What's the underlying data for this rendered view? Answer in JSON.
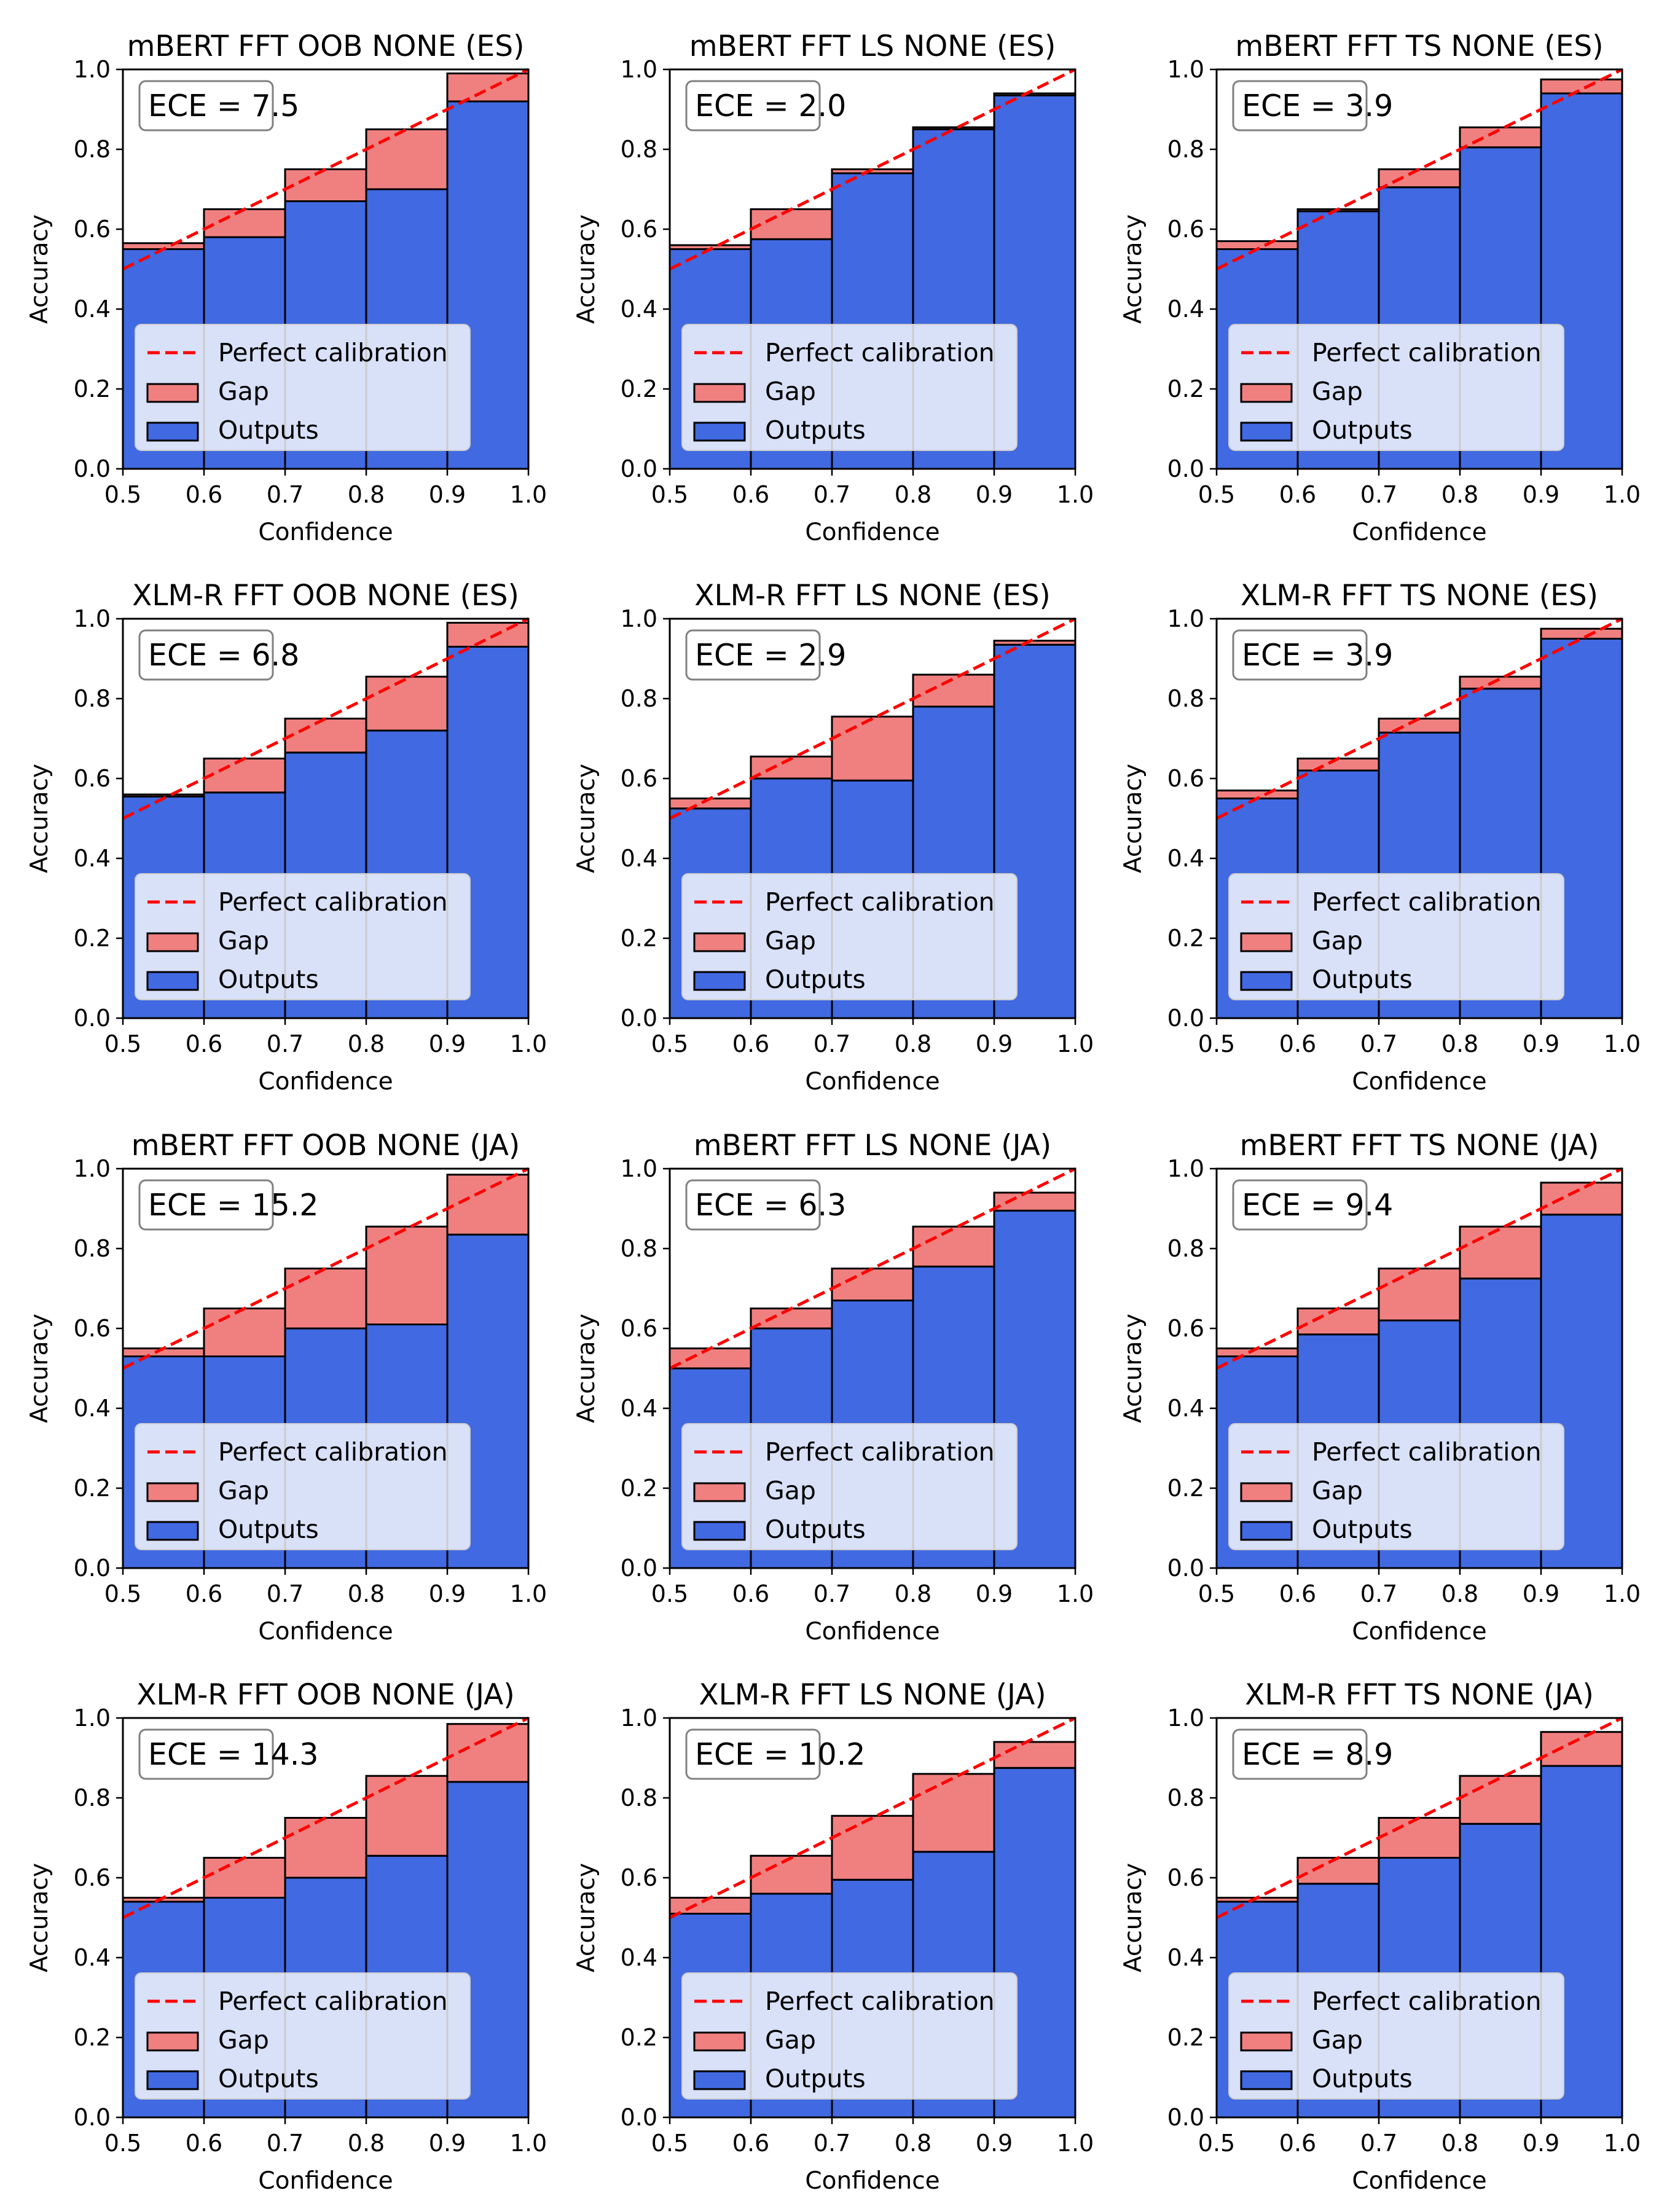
{
  "legend": {
    "perfect": "Perfect calibration",
    "gap": "Gap",
    "outputs": "Outputs"
  },
  "colors": {
    "outputs": "#4169e1",
    "gap": "#f08080",
    "diagonal": "#ff0000",
    "edge": "#000000"
  },
  "chart_data": [
    {
      "type": "bar",
      "title": "mBERT FFT OOB NONE (ES)",
      "ece_label": "ECE = 7.5",
      "xlabel": "Confidence",
      "ylabel": "Accuracy",
      "xlim": [
        0.5,
        1.0
      ],
      "ylim": [
        0.0,
        1.0
      ],
      "xticks": [
        "0.5",
        "0.6",
        "0.7",
        "0.8",
        "0.9",
        "1.0"
      ],
      "yticks": [
        "0.0",
        "0.2",
        "0.4",
        "0.6",
        "0.8",
        "1.0"
      ],
      "bins": [
        0.5,
        0.6,
        0.7,
        0.8,
        0.9
      ],
      "accuracy": [
        0.55,
        0.58,
        0.67,
        0.7,
        0.92
      ],
      "confidence": [
        0.565,
        0.65,
        0.75,
        0.85,
        0.99
      ]
    },
    {
      "type": "bar",
      "title": "mBERT FFT LS NONE (ES)",
      "ece_label": "ECE = 2.0",
      "xlabel": "Confidence",
      "ylabel": "Accuracy",
      "xlim": [
        0.5,
        1.0
      ],
      "ylim": [
        0.0,
        1.0
      ],
      "xticks": [
        "0.5",
        "0.6",
        "0.7",
        "0.8",
        "0.9",
        "1.0"
      ],
      "yticks": [
        "0.0",
        "0.2",
        "0.4",
        "0.6",
        "0.8",
        "1.0"
      ],
      "bins": [
        0.5,
        0.6,
        0.7,
        0.8,
        0.9
      ],
      "accuracy": [
        0.55,
        0.575,
        0.74,
        0.855,
        0.94
      ],
      "confidence": [
        0.56,
        0.65,
        0.75,
        0.85,
        0.935
      ]
    },
    {
      "type": "bar",
      "title": "mBERT FFT TS NONE (ES)",
      "ece_label": "ECE = 3.9",
      "xlabel": "Confidence",
      "ylabel": "Accuracy",
      "xlim": [
        0.5,
        1.0
      ],
      "ylim": [
        0.0,
        1.0
      ],
      "xticks": [
        "0.5",
        "0.6",
        "0.7",
        "0.8",
        "0.9",
        "1.0"
      ],
      "yticks": [
        "0.0",
        "0.2",
        "0.4",
        "0.6",
        "0.8",
        "1.0"
      ],
      "bins": [
        0.5,
        0.6,
        0.7,
        0.8,
        0.9
      ],
      "accuracy": [
        0.55,
        0.645,
        0.705,
        0.805,
        0.94
      ],
      "confidence": [
        0.57,
        0.65,
        0.75,
        0.855,
        0.975
      ]
    },
    {
      "type": "bar",
      "title": "XLM-R FFT OOB NONE (ES)",
      "ece_label": "ECE = 6.8",
      "xlabel": "Confidence",
      "ylabel": "Accuracy",
      "xlim": [
        0.5,
        1.0
      ],
      "ylim": [
        0.0,
        1.0
      ],
      "xticks": [
        "0.5",
        "0.6",
        "0.7",
        "0.8",
        "0.9",
        "1.0"
      ],
      "yticks": [
        "0.0",
        "0.2",
        "0.4",
        "0.6",
        "0.8",
        "1.0"
      ],
      "bins": [
        0.5,
        0.6,
        0.7,
        0.8,
        0.9
      ],
      "accuracy": [
        0.555,
        0.565,
        0.665,
        0.72,
        0.93
      ],
      "confidence": [
        0.56,
        0.65,
        0.75,
        0.855,
        0.99
      ]
    },
    {
      "type": "bar",
      "title": "XLM-R FFT LS NONE (ES)",
      "ece_label": "ECE = 2.9",
      "xlabel": "Confidence",
      "ylabel": "Accuracy",
      "xlim": [
        0.5,
        1.0
      ],
      "ylim": [
        0.0,
        1.0
      ],
      "xticks": [
        "0.5",
        "0.6",
        "0.7",
        "0.8",
        "0.9",
        "1.0"
      ],
      "yticks": [
        "0.0",
        "0.2",
        "0.4",
        "0.6",
        "0.8",
        "1.0"
      ],
      "bins": [
        0.5,
        0.6,
        0.7,
        0.8,
        0.9
      ],
      "accuracy": [
        0.525,
        0.6,
        0.595,
        0.78,
        0.935
      ],
      "confidence": [
        0.55,
        0.655,
        0.755,
        0.86,
        0.945
      ]
    },
    {
      "type": "bar",
      "title": "XLM-R FFT TS NONE (ES)",
      "ece_label": "ECE = 3.9",
      "xlabel": "Confidence",
      "ylabel": "Accuracy",
      "xlim": [
        0.5,
        1.0
      ],
      "ylim": [
        0.0,
        1.0
      ],
      "xticks": [
        "0.5",
        "0.6",
        "0.7",
        "0.8",
        "0.9",
        "1.0"
      ],
      "yticks": [
        "0.0",
        "0.2",
        "0.4",
        "0.6",
        "0.8",
        "1.0"
      ],
      "bins": [
        0.5,
        0.6,
        0.7,
        0.8,
        0.9
      ],
      "accuracy": [
        0.55,
        0.62,
        0.715,
        0.825,
        0.95
      ],
      "confidence": [
        0.57,
        0.65,
        0.75,
        0.855,
        0.975
      ]
    },
    {
      "type": "bar",
      "title": "mBERT FFT OOB NONE (JA)",
      "ece_label": "ECE = 15.2",
      "xlabel": "Confidence",
      "ylabel": "Accuracy",
      "xlim": [
        0.5,
        1.0
      ],
      "ylim": [
        0.0,
        1.0
      ],
      "xticks": [
        "0.5",
        "0.6",
        "0.7",
        "0.8",
        "0.9",
        "1.0"
      ],
      "yticks": [
        "0.0",
        "0.2",
        "0.4",
        "0.6",
        "0.8",
        "1.0"
      ],
      "bins": [
        0.5,
        0.6,
        0.7,
        0.8,
        0.9
      ],
      "accuracy": [
        0.53,
        0.53,
        0.6,
        0.61,
        0.835
      ],
      "confidence": [
        0.55,
        0.65,
        0.75,
        0.855,
        0.985
      ]
    },
    {
      "type": "bar",
      "title": "mBERT FFT LS NONE (JA)",
      "ece_label": "ECE = 6.3",
      "xlabel": "Confidence",
      "ylabel": "Accuracy",
      "xlim": [
        0.5,
        1.0
      ],
      "ylim": [
        0.0,
        1.0
      ],
      "xticks": [
        "0.5",
        "0.6",
        "0.7",
        "0.8",
        "0.9",
        "1.0"
      ],
      "yticks": [
        "0.0",
        "0.2",
        "0.4",
        "0.6",
        "0.8",
        "1.0"
      ],
      "bins": [
        0.5,
        0.6,
        0.7,
        0.8,
        0.9
      ],
      "accuracy": [
        0.5,
        0.6,
        0.67,
        0.755,
        0.895
      ],
      "confidence": [
        0.55,
        0.65,
        0.75,
        0.855,
        0.94
      ]
    },
    {
      "type": "bar",
      "title": "mBERT FFT TS NONE (JA)",
      "ece_label": "ECE = 9.4",
      "xlabel": "Confidence",
      "ylabel": "Accuracy",
      "xlim": [
        0.5,
        1.0
      ],
      "ylim": [
        0.0,
        1.0
      ],
      "xticks": [
        "0.5",
        "0.6",
        "0.7",
        "0.8",
        "0.9",
        "1.0"
      ],
      "yticks": [
        "0.0",
        "0.2",
        "0.4",
        "0.6",
        "0.8",
        "1.0"
      ],
      "bins": [
        0.5,
        0.6,
        0.7,
        0.8,
        0.9
      ],
      "accuracy": [
        0.53,
        0.585,
        0.62,
        0.725,
        0.885
      ],
      "confidence": [
        0.55,
        0.65,
        0.75,
        0.855,
        0.965
      ]
    },
    {
      "type": "bar",
      "title": "XLM-R FFT OOB NONE (JA)",
      "ece_label": "ECE = 14.3",
      "xlabel": "Confidence",
      "ylabel": "Accuracy",
      "xlim": [
        0.5,
        1.0
      ],
      "ylim": [
        0.0,
        1.0
      ],
      "xticks": [
        "0.5",
        "0.6",
        "0.7",
        "0.8",
        "0.9",
        "1.0"
      ],
      "yticks": [
        "0.0",
        "0.2",
        "0.4",
        "0.6",
        "0.8",
        "1.0"
      ],
      "bins": [
        0.5,
        0.6,
        0.7,
        0.8,
        0.9
      ],
      "accuracy": [
        0.54,
        0.55,
        0.6,
        0.655,
        0.84
      ],
      "confidence": [
        0.55,
        0.65,
        0.75,
        0.855,
        0.985
      ]
    },
    {
      "type": "bar",
      "title": "XLM-R FFT LS NONE (JA)",
      "ece_label": "ECE = 10.2",
      "xlabel": "Confidence",
      "ylabel": "Accuracy",
      "xlim": [
        0.5,
        1.0
      ],
      "ylim": [
        0.0,
        1.0
      ],
      "xticks": [
        "0.5",
        "0.6",
        "0.7",
        "0.8",
        "0.9",
        "1.0"
      ],
      "yticks": [
        "0.0",
        "0.2",
        "0.4",
        "0.6",
        "0.8",
        "1.0"
      ],
      "bins": [
        0.5,
        0.6,
        0.7,
        0.8,
        0.9
      ],
      "accuracy": [
        0.51,
        0.56,
        0.595,
        0.665,
        0.875
      ],
      "confidence": [
        0.55,
        0.655,
        0.755,
        0.86,
        0.94
      ]
    },
    {
      "type": "bar",
      "title": "XLM-R FFT TS NONE (JA)",
      "ece_label": "ECE = 8.9",
      "xlabel": "Confidence",
      "ylabel": "Accuracy",
      "xlim": [
        0.5,
        1.0
      ],
      "ylim": [
        0.0,
        1.0
      ],
      "xticks": [
        "0.5",
        "0.6",
        "0.7",
        "0.8",
        "0.9",
        "1.0"
      ],
      "yticks": [
        "0.0",
        "0.2",
        "0.4",
        "0.6",
        "0.8",
        "1.0"
      ],
      "bins": [
        0.5,
        0.6,
        0.7,
        0.8,
        0.9
      ],
      "accuracy": [
        0.54,
        0.585,
        0.65,
        0.735,
        0.88
      ],
      "confidence": [
        0.55,
        0.65,
        0.75,
        0.855,
        0.965
      ]
    }
  ]
}
